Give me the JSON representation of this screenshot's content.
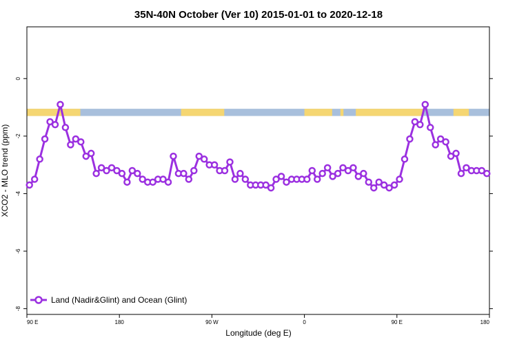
{
  "chart_data": {
    "type": "line",
    "title": "35N-40N October (Ver 10)   2015-01-01 to 2020-12-18",
    "xlabel": "Longitude (deg E)",
    "ylabel": "XCO2 - MLO trend (ppm)",
    "xlim": [
      90,
      540
    ],
    "ylim": [
      -8.2,
      1.8
    ],
    "x_ticks": [
      {
        "value": 90,
        "label": "90 E"
      },
      {
        "value": 180,
        "label": "180"
      },
      {
        "value": 270,
        "label": "90 W"
      },
      {
        "value": 360,
        "label": "0"
      },
      {
        "value": 450,
        "label": "90 E"
      },
      {
        "value": 540,
        "label": "180"
      }
    ],
    "y_ticks": [
      {
        "value": 0,
        "label": "0"
      },
      {
        "value": -2,
        "label": "-2"
      },
      {
        "value": -4,
        "label": "-4"
      },
      {
        "value": -6,
        "label": "-6"
      },
      {
        "value": -8,
        "label": "-8"
      }
    ],
    "grid": false,
    "legend_position": "bottom-left",
    "series": [
      {
        "name": "Land (Nadir&Glint) and Ocean (Glint)",
        "color": "#9b30e0",
        "x": [
          92.5,
          97.5,
          102.5,
          107.5,
          112.5,
          117.5,
          122.5,
          127.5,
          132.5,
          137.5,
          142.5,
          147.5,
          152.5,
          157.5,
          162.5,
          167.5,
          172.5,
          177.5,
          182.5,
          187.5,
          192.5,
          197.5,
          202.5,
          207.5,
          212.5,
          217.5,
          222.5,
          227.5,
          232.5,
          237.5,
          242.5,
          247.5,
          252.5,
          257.5,
          262.5,
          267.5,
          272.5,
          277.5,
          282.5,
          287.5,
          292.5,
          297.5,
          302.5,
          307.5,
          312.5,
          317.5,
          322.5,
          327.5,
          332.5,
          337.5,
          342.5,
          347.5,
          352.5,
          357.5,
          362.5,
          367.5,
          372.5,
          377.5,
          382.5,
          387.5,
          392.5,
          397.5,
          402.5,
          407.5,
          412.5,
          417.5,
          422.5,
          427.5,
          432.5,
          437.5,
          442.5,
          447.5,
          452.5,
          457.5,
          462.5,
          467.5,
          472.5,
          477.5,
          482.5,
          487.5,
          492.5,
          497.5,
          502.5,
          507.5,
          512.5,
          517.5,
          522.5,
          527.5,
          532.5,
          537.5
        ],
        "values": [
          -3.7,
          -3.5,
          -2.8,
          -2.1,
          -1.5,
          -1.6,
          -0.9,
          -1.7,
          -2.3,
          -2.1,
          -2.2,
          -2.7,
          -2.6,
          -3.3,
          -3.1,
          -3.2,
          -3.1,
          -3.2,
          -3.3,
          -3.6,
          -3.2,
          -3.3,
          -3.5,
          -3.6,
          -3.6,
          -3.5,
          -3.5,
          -3.6,
          -2.7,
          -3.3,
          -3.3,
          -3.5,
          -3.2,
          -2.7,
          -2.8,
          -3.0,
          -3.0,
          -3.2,
          -3.2,
          -2.9,
          -3.5,
          -3.3,
          -3.5,
          -3.7,
          -3.7,
          -3.7,
          -3.7,
          -3.8,
          -3.5,
          -3.4,
          -3.6,
          -3.5,
          -3.5,
          -3.5,
          -3.5,
          -3.2,
          -3.5,
          -3.3,
          -3.1,
          -3.4,
          -3.3,
          -3.1,
          -3.2,
          -3.1,
          -3.4,
          -3.3,
          -3.6,
          -3.8,
          -3.6,
          -3.7,
          -3.8,
          -3.7,
          -3.5,
          -2.8,
          -2.1,
          -1.5,
          -1.6,
          -0.9,
          -1.7,
          -2.3,
          -2.1,
          -2.2,
          -2.7,
          -2.6,
          -3.3,
          -3.1,
          -3.2,
          -3.2,
          -3.2,
          -3.3
        ]
      }
    ],
    "surface_band": {
      "y_range": [
        -1.3,
        -1.05
      ],
      "land_color": "#f5d672",
      "ocean_color": "#a8bfdc",
      "land_segments": [
        [
          90,
          142
        ],
        [
          240,
          282
        ],
        [
          360,
          387
        ],
        [
          395,
          398
        ],
        [
          410,
          475
        ],
        [
          505,
          520
        ]
      ]
    }
  }
}
